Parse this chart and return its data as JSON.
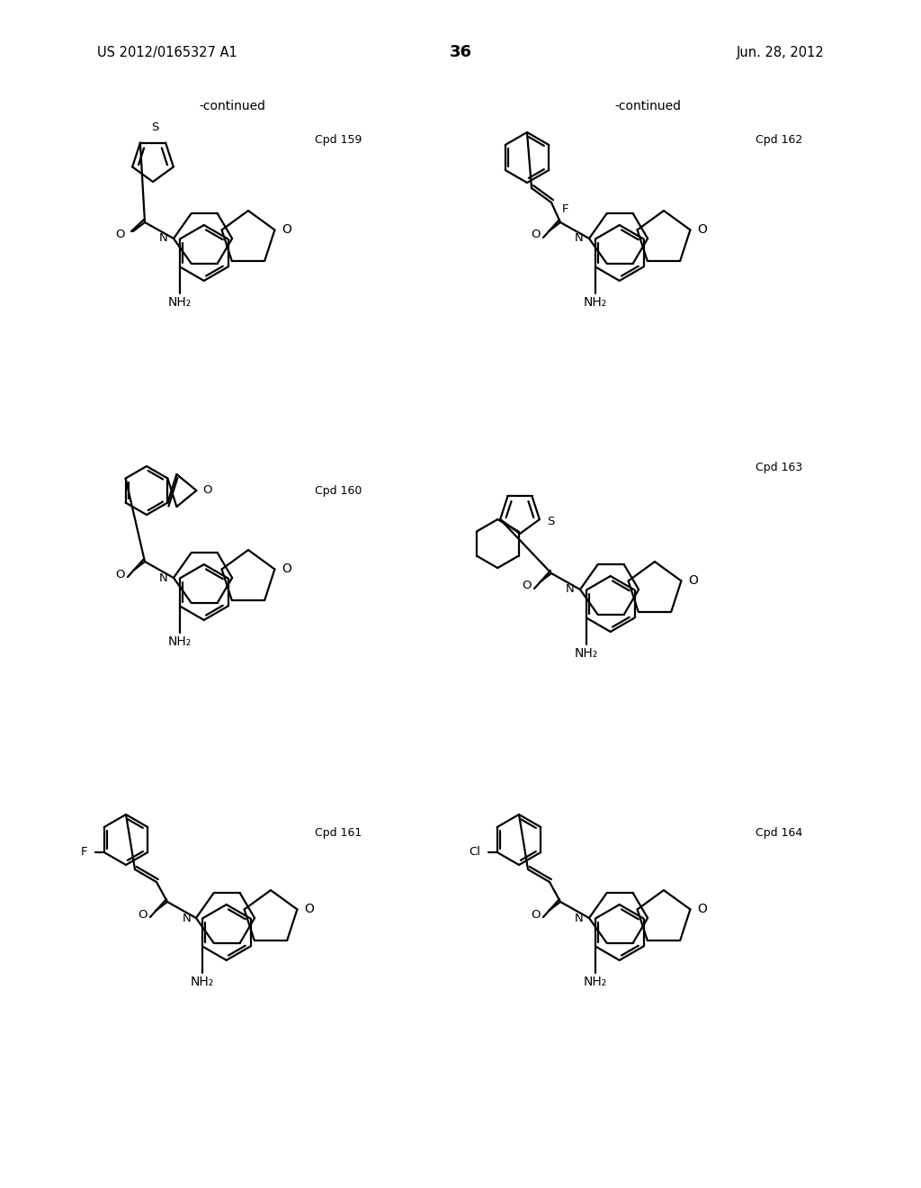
{
  "page_number": "36",
  "patent_number": "US 2012/0165327 A1",
  "patent_date": "Jun. 28, 2012",
  "background_color": "#ffffff",
  "compounds": [
    "Cpd 159",
    "Cpd 160",
    "Cpd 161",
    "Cpd 162",
    "Cpd 163",
    "Cpd 164"
  ]
}
